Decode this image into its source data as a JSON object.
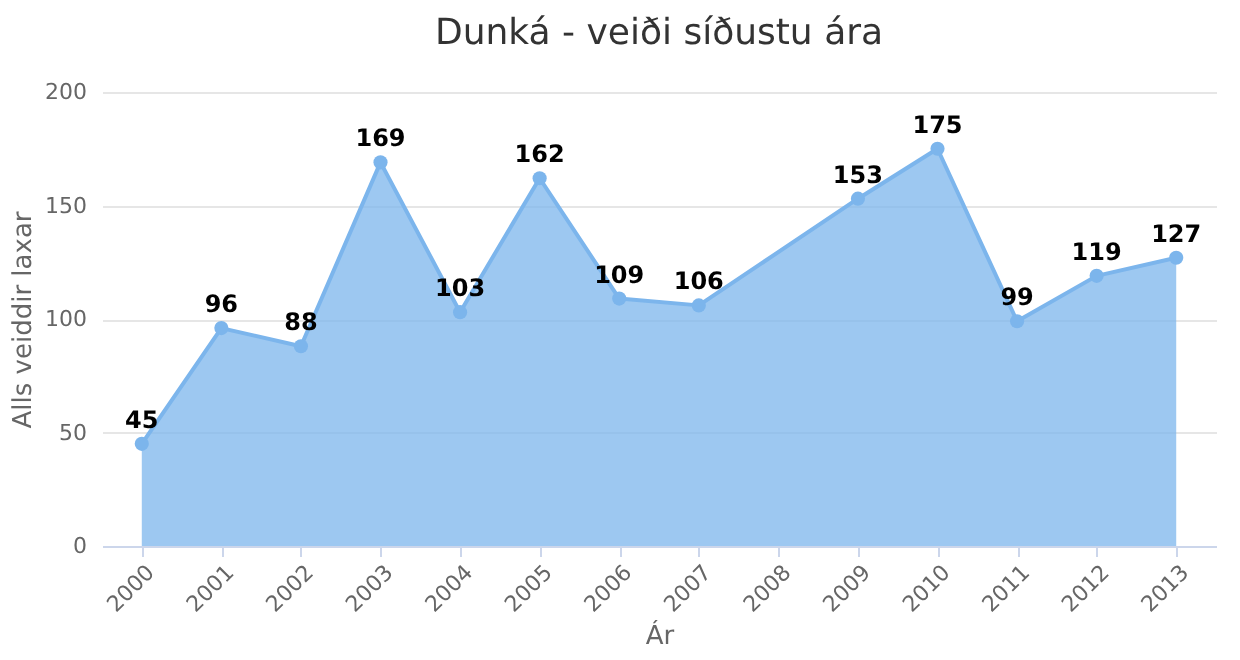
{
  "chart_data": {
    "type": "area",
    "title": "Dunká - veiði síðustu ára",
    "xlabel": "Ár",
    "ylabel": "Alls veiddir laxar",
    "categories": [
      "2000",
      "2001",
      "2002",
      "2003",
      "2004",
      "2005",
      "2006",
      "2007",
      "2008",
      "2009",
      "2010",
      "2011",
      "2012",
      "2013"
    ],
    "series": [
      {
        "color": "#7cb5ec",
        "values": [
          45,
          96,
          88,
          169,
          103,
          162,
          109,
          106,
          null,
          153,
          175,
          99,
          119,
          127
        ]
      }
    ],
    "ylim": [
      0,
      200
    ],
    "yticks": [
      0,
      50,
      100,
      150,
      200
    ],
    "grid": "y",
    "marker": "circle",
    "data_labels": true
  }
}
